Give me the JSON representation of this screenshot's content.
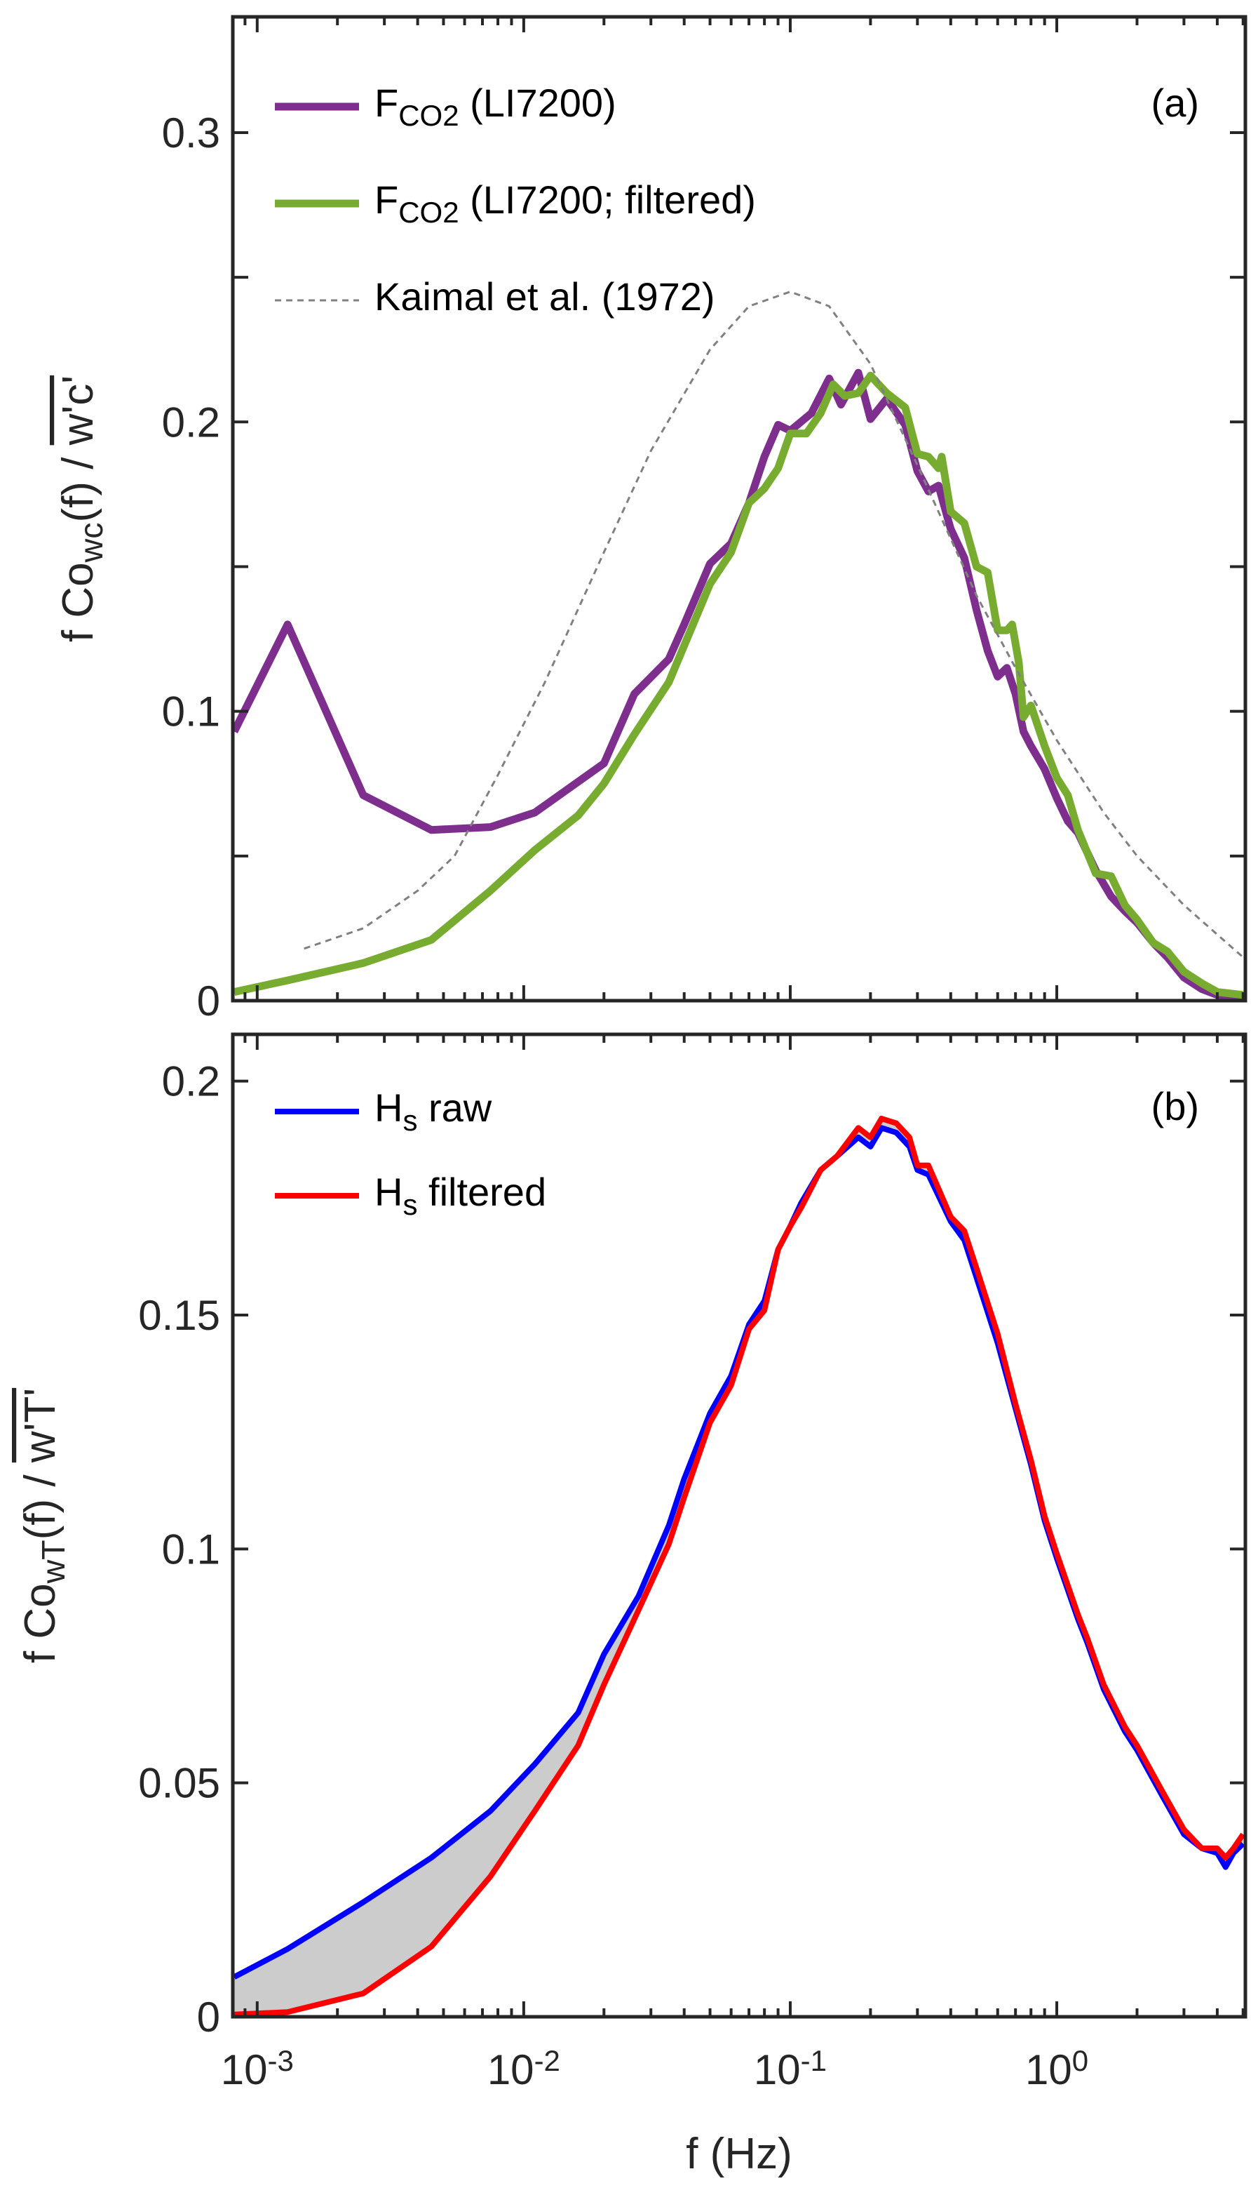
{
  "chart_data": [
    {
      "type": "line",
      "panel_label": "(a)",
      "xscale": "log",
      "xlim": [
        0.00081,
        5.1
      ],
      "ylim": [
        0,
        0.34
      ],
      "yticks": [
        0,
        0.1,
        0.2,
        0.3
      ],
      "ytick_labels": [
        "0",
        "0.1",
        "0.2",
        "0.3"
      ],
      "yminor_ticks": [
        0.05,
        0.15,
        0.25
      ],
      "ylabel": {
        "pre": "f Co",
        "sub": "wc",
        "post": "(f) / ",
        "over": "w'c'"
      },
      "legend_placement": "top-left",
      "series": [
        {
          "name": {
            "pre": "F",
            "sub": "CO2",
            "post": " (LI7200)"
          },
          "color": "#7E2F8E",
          "style": "solid",
          "x": [
            0.00082,
            0.0013,
            0.0025,
            0.0045,
            0.0075,
            0.011,
            0.02,
            0.026,
            0.035,
            0.04,
            0.05,
            0.06,
            0.07,
            0.08,
            0.09,
            0.1,
            0.12,
            0.14,
            0.155,
            0.18,
            0.2,
            0.23,
            0.27,
            0.3,
            0.33,
            0.36,
            0.4,
            0.45,
            0.5,
            0.55,
            0.6,
            0.65,
            0.7,
            0.75,
            0.8,
            0.9,
            1.0,
            1.1,
            1.2,
            1.4,
            1.6,
            1.8,
            2.0,
            2.3,
            2.6,
            3.0,
            3.5,
            4.0,
            4.5,
            5.0
          ],
          "y": [
            0.093,
            0.13,
            0.071,
            0.059,
            0.06,
            0.065,
            0.082,
            0.106,
            0.118,
            0.13,
            0.151,
            0.158,
            0.172,
            0.188,
            0.199,
            0.197,
            0.203,
            0.215,
            0.206,
            0.217,
            0.201,
            0.208,
            0.199,
            0.183,
            0.176,
            0.178,
            0.163,
            0.153,
            0.135,
            0.121,
            0.112,
            0.115,
            0.106,
            0.093,
            0.088,
            0.08,
            0.07,
            0.062,
            0.058,
            0.045,
            0.036,
            0.031,
            0.027,
            0.02,
            0.015,
            0.008,
            0.004,
            0.002,
            0.001,
            0.001
          ]
        },
        {
          "name": {
            "pre": "F",
            "sub": "CO2",
            "post": " (LI7200; filtered)"
          },
          "color": "#77AC30",
          "style": "solid",
          "x": [
            0.00082,
            0.0013,
            0.0025,
            0.0045,
            0.0075,
            0.011,
            0.016,
            0.02,
            0.026,
            0.035,
            0.05,
            0.06,
            0.07,
            0.08,
            0.09,
            0.1,
            0.115,
            0.13,
            0.145,
            0.16,
            0.18,
            0.2,
            0.23,
            0.27,
            0.3,
            0.33,
            0.36,
            0.37,
            0.4,
            0.45,
            0.5,
            0.55,
            0.6,
            0.65,
            0.68,
            0.72,
            0.75,
            0.8,
            0.9,
            1.0,
            1.1,
            1.2,
            1.4,
            1.6,
            1.8,
            2.0,
            2.3,
            2.6,
            3.0,
            3.5,
            4.0,
            5.0
          ],
          "y": [
            0.003,
            0.007,
            0.013,
            0.021,
            0.038,
            0.052,
            0.064,
            0.075,
            0.092,
            0.11,
            0.144,
            0.155,
            0.172,
            0.177,
            0.184,
            0.196,
            0.196,
            0.203,
            0.213,
            0.209,
            0.21,
            0.216,
            0.21,
            0.205,
            0.189,
            0.188,
            0.184,
            0.188,
            0.169,
            0.165,
            0.15,
            0.148,
            0.128,
            0.128,
            0.13,
            0.117,
            0.098,
            0.102,
            0.088,
            0.077,
            0.071,
            0.059,
            0.044,
            0.043,
            0.033,
            0.028,
            0.02,
            0.017,
            0.01,
            0.006,
            0.003,
            0.002
          ]
        },
        {
          "name": {
            "pre": "Kaimal et al. (1972)",
            "sub": "",
            "post": ""
          },
          "color": "#808080",
          "style": "dashed",
          "x": [
            0.0015,
            0.0025,
            0.004,
            0.0055,
            0.008,
            0.012,
            0.02,
            0.03,
            0.05,
            0.07,
            0.1,
            0.14,
            0.2,
            0.3,
            0.5,
            0.7,
            1.0,
            1.5,
            2.0,
            3.0,
            5.0
          ],
          "y": [
            0.018,
            0.025,
            0.038,
            0.05,
            0.078,
            0.11,
            0.155,
            0.19,
            0.225,
            0.24,
            0.245,
            0.24,
            0.22,
            0.185,
            0.14,
            0.115,
            0.09,
            0.065,
            0.05,
            0.033,
            0.015
          ]
        }
      ]
    },
    {
      "type": "line",
      "panel_label": "(b)",
      "xscale": "log",
      "xlim": [
        0.00081,
        5.1
      ],
      "ylim": [
        0,
        0.21
      ],
      "xticks": [
        0.001,
        0.01,
        0.1,
        1
      ],
      "xtick_labels": [
        {
          "base": "10",
          "exp": "-3"
        },
        {
          "base": "10",
          "exp": "-2"
        },
        {
          "base": "10",
          "exp": "-1"
        },
        {
          "base": "10",
          "exp": "0"
        }
      ],
      "xlabel": "f (Hz)",
      "yticks": [
        0,
        0.05,
        0.1,
        0.15,
        0.2
      ],
      "ytick_labels": [
        "0",
        "0.05",
        "0.1",
        "0.15",
        "0.2"
      ],
      "ylabel": {
        "pre": "f Co",
        "sub": "wT",
        "post": "(f) / ",
        "over": "w'T'"
      },
      "legend_placement": "top-left",
      "shaded_between_series": true,
      "shade_color": "#CCCCCC",
      "series": [
        {
          "name": {
            "pre": "H",
            "sub": "s",
            "post": " raw"
          },
          "color": "#0000FF",
          "style": "solid",
          "x": [
            0.00082,
            0.0013,
            0.0025,
            0.0045,
            0.0075,
            0.011,
            0.016,
            0.02,
            0.027,
            0.035,
            0.04,
            0.05,
            0.06,
            0.07,
            0.08,
            0.09,
            0.1,
            0.11,
            0.13,
            0.15,
            0.18,
            0.2,
            0.22,
            0.25,
            0.28,
            0.3,
            0.33,
            0.4,
            0.45,
            0.5,
            0.6,
            0.7,
            0.8,
            0.9,
            1.0,
            1.2,
            1.3,
            1.5,
            1.8,
            2.0,
            2.5,
            3.0,
            3.5,
            4.0,
            4.3,
            4.6,
            5.0
          ],
          "y": [
            0.0085,
            0.0145,
            0.0245,
            0.034,
            0.044,
            0.054,
            0.065,
            0.0775,
            0.09,
            0.105,
            0.115,
            0.129,
            0.137,
            0.148,
            0.153,
            0.164,
            0.169,
            0.174,
            0.181,
            0.184,
            0.188,
            0.186,
            0.19,
            0.189,
            0.186,
            0.181,
            0.18,
            0.17,
            0.166,
            0.158,
            0.144,
            0.13,
            0.118,
            0.106,
            0.098,
            0.085,
            0.08,
            0.07,
            0.061,
            0.057,
            0.047,
            0.039,
            0.036,
            0.035,
            0.032,
            0.035,
            0.037
          ]
        },
        {
          "name": {
            "pre": "H",
            "sub": "s",
            "post": " filtered"
          },
          "color": "#FF0000",
          "style": "solid",
          "x": [
            0.00082,
            0.0013,
            0.0025,
            0.0045,
            0.0075,
            0.011,
            0.016,
            0.02,
            0.027,
            0.035,
            0.04,
            0.05,
            0.06,
            0.07,
            0.08,
            0.09,
            0.1,
            0.11,
            0.13,
            0.15,
            0.18,
            0.2,
            0.22,
            0.25,
            0.28,
            0.3,
            0.33,
            0.4,
            0.45,
            0.5,
            0.6,
            0.7,
            0.8,
            0.9,
            1.0,
            1.2,
            1.3,
            1.5,
            1.8,
            2.0,
            2.5,
            3.0,
            3.5,
            4.0,
            4.3,
            4.6,
            5.0
          ],
          "y": [
            0.0005,
            0.001,
            0.005,
            0.015,
            0.03,
            0.044,
            0.058,
            0.071,
            0.087,
            0.101,
            0.111,
            0.127,
            0.135,
            0.147,
            0.151,
            0.164,
            0.169,
            0.173,
            0.181,
            0.184,
            0.19,
            0.188,
            0.192,
            0.191,
            0.188,
            0.182,
            0.182,
            0.171,
            0.168,
            0.16,
            0.146,
            0.131,
            0.119,
            0.107,
            0.099,
            0.086,
            0.081,
            0.071,
            0.062,
            0.058,
            0.048,
            0.04,
            0.036,
            0.036,
            0.034,
            0.036,
            0.039
          ]
        }
      ]
    }
  ]
}
